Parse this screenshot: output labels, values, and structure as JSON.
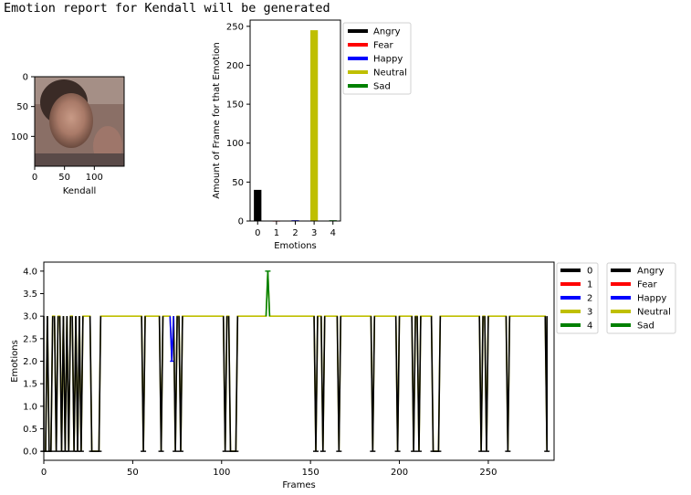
{
  "header": {
    "text": "Emotion report for Kendall will be generated"
  },
  "colors": {
    "angry": "#000000",
    "fear": "#ff0000",
    "happy": "#0000ff",
    "neutral": "#bfbf00",
    "sad": "#008000"
  },
  "chart_data": [
    {
      "type": "image",
      "xlabel": "Kendall",
      "x_ticks": [
        "0",
        "50",
        "100"
      ],
      "y_ticks": [
        "0",
        "50",
        "100"
      ]
    },
    {
      "type": "bar",
      "categories": [
        "0",
        "1",
        "2",
        "3",
        "4"
      ],
      "series": [
        {
          "name": "Angry",
          "color": "#000000",
          "x": 0,
          "value": 40
        },
        {
          "name": "Fear",
          "color": "#ff0000",
          "x": 1,
          "value": 0
        },
        {
          "name": "Happy",
          "color": "#0000ff",
          "x": 2,
          "value": 1
        },
        {
          "name": "Neutral",
          "color": "#bfbf00",
          "x": 3,
          "value": 245
        },
        {
          "name": "Sad",
          "color": "#008000",
          "x": 4,
          "value": 1
        }
      ],
      "xlabel": "Emotions",
      "ylabel": "Amount of Frame for that Emotion",
      "ylim": [
        0,
        258
      ],
      "y_ticks": [
        "0",
        "50",
        "100",
        "150",
        "200",
        "250"
      ],
      "legend": [
        "Angry",
        "Fear",
        "Happy",
        "Neutral",
        "Sad"
      ],
      "legend_position": "right"
    },
    {
      "type": "line",
      "xlabel": "Frames",
      "ylabel": "Emotions",
      "xlim": [
        0,
        287
      ],
      "ylim": [
        -0.2,
        4.2
      ],
      "x_ticks": [
        "0",
        "50",
        "100",
        "150",
        "200",
        "250"
      ],
      "y_ticks": [
        "0.0",
        "0.5",
        "1.0",
        "1.5",
        "2.0",
        "2.5",
        "3.0",
        "3.5",
        "4.0"
      ],
      "angry_frames": [
        [
          0,
          1
        ],
        [
          3,
          4
        ],
        [
          7,
          7
        ],
        [
          10,
          10
        ],
        [
          12,
          12
        ],
        [
          14,
          14
        ],
        [
          17,
          17
        ],
        [
          19,
          19
        ],
        [
          21,
          21
        ],
        [
          27,
          31
        ],
        [
          56,
          56
        ],
        [
          66,
          66
        ],
        [
          74,
          74
        ],
        [
          77,
          77
        ],
        [
          102,
          102
        ],
        [
          105,
          108
        ],
        [
          153,
          153
        ],
        [
          157,
          157
        ],
        [
          166,
          166
        ],
        [
          185,
          185
        ],
        [
          199,
          199
        ],
        [
          208,
          208
        ],
        [
          211,
          211
        ],
        [
          219,
          222
        ],
        [
          246,
          246
        ],
        [
          249,
          249
        ],
        [
          261,
          261
        ],
        [
          283,
          283
        ]
      ],
      "happy_frames": [
        72
      ],
      "sad_frames": [
        126
      ],
      "series_legend": [
        "0",
        "1",
        "2",
        "3",
        "4"
      ],
      "emotion_legend": [
        "Angry",
        "Fear",
        "Happy",
        "Neutral",
        "Sad"
      ],
      "legend_position": "right"
    }
  ]
}
